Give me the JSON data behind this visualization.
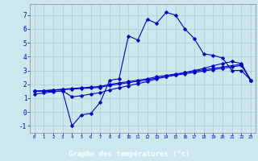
{
  "xlabel": "Graphe des températures (°c)",
  "bg_color": "#cce8ee",
  "line_color": "#0000cc",
  "grid_color": "#aacccc",
  "hours": [
    0,
    1,
    2,
    3,
    4,
    5,
    6,
    7,
    8,
    9,
    10,
    11,
    12,
    13,
    14,
    15,
    16,
    17,
    18,
    19,
    20,
    21,
    22,
    23
  ],
  "temp_main": [
    1.5,
    1.5,
    1.5,
    1.5,
    -1.0,
    -0.2,
    -0.1,
    0.7,
    2.3,
    2.4,
    5.5,
    5.2,
    6.7,
    6.4,
    7.2,
    7.0,
    6.0,
    5.3,
    4.2,
    4.1,
    3.9,
    3.0,
    3.0,
    2.3
  ],
  "trend_upper": [
    1.5,
    1.55,
    1.6,
    1.65,
    1.7,
    1.75,
    1.8,
    1.85,
    2.0,
    2.1,
    2.2,
    2.3,
    2.4,
    2.55,
    2.65,
    2.75,
    2.85,
    2.95,
    3.05,
    3.15,
    3.25,
    3.35,
    3.45,
    2.3
  ],
  "trend_mid": [
    1.5,
    1.54,
    1.58,
    1.62,
    1.66,
    1.7,
    1.74,
    1.78,
    1.92,
    2.02,
    2.12,
    2.22,
    2.32,
    2.46,
    2.56,
    2.66,
    2.76,
    2.86,
    2.96,
    3.06,
    3.16,
    3.26,
    3.36,
    2.3
  ],
  "trend_lower": [
    1.3,
    1.38,
    1.46,
    1.54,
    1.1,
    1.18,
    1.3,
    1.4,
    1.6,
    1.75,
    1.9,
    2.05,
    2.2,
    2.4,
    2.55,
    2.7,
    2.85,
    3.0,
    3.15,
    3.35,
    3.5,
    3.65,
    3.5,
    2.3
  ],
  "ylim": [
    -1.5,
    7.8
  ],
  "xlim": [
    -0.5,
    23.5
  ],
  "yticks": [
    -1,
    0,
    1,
    2,
    3,
    4,
    5,
    6,
    7
  ],
  "xticks": [
    0,
    1,
    2,
    3,
    4,
    5,
    6,
    7,
    8,
    9,
    10,
    11,
    12,
    13,
    14,
    15,
    16,
    17,
    18,
    19,
    20,
    21,
    22,
    23
  ]
}
